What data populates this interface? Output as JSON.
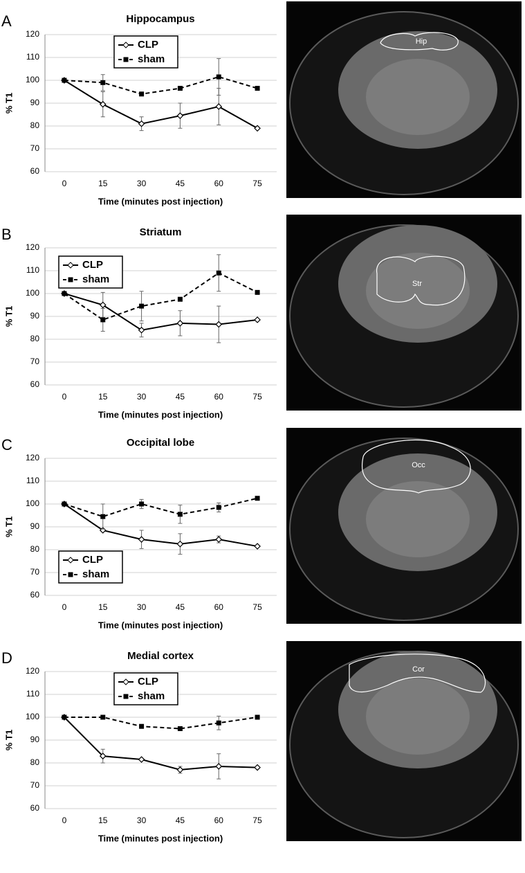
{
  "chart_data": [
    {
      "type": "line",
      "panel": "A",
      "title": "Hippocampus",
      "image_label": "Hip",
      "xlabel": "Time (minutes post injection)",
      "ylabel": "% T1",
      "categories": [
        "0",
        "15",
        "30",
        "45",
        "60",
        "75"
      ],
      "ylim": [
        60,
        120
      ],
      "yticks": [
        60,
        70,
        80,
        90,
        100,
        110,
        120
      ],
      "grid": true,
      "legend": "upper center",
      "series": [
        {
          "name": "CLP",
          "color": "#000000",
          "values": [
            100,
            89.5,
            81,
            84.5,
            88.5,
            79
          ],
          "errors": [
            null,
            5.5,
            3,
            5.5,
            8,
            null
          ]
        },
        {
          "name": "sham",
          "color": "#000000",
          "values": [
            100,
            99,
            94,
            96.5,
            101.5,
            96.5
          ],
          "errors": [
            null,
            3.5,
            null,
            null,
            8,
            null
          ]
        }
      ]
    },
    {
      "type": "line",
      "panel": "B",
      "title": "Striatum",
      "image_label": "Str",
      "xlabel": "Time (minutes post injection)",
      "ylabel": "% T1",
      "categories": [
        "0",
        "15",
        "30",
        "45",
        "60",
        "75"
      ],
      "ylim": [
        60,
        120
      ],
      "yticks": [
        60,
        70,
        80,
        90,
        100,
        110,
        120
      ],
      "grid": true,
      "legend": "upper left",
      "series": [
        {
          "name": "CLP",
          "color": "#000000",
          "values": [
            100,
            95,
            84,
            87,
            86.5,
            88.5
          ],
          "errors": [
            null,
            5.5,
            3,
            5.5,
            8,
            null
          ]
        },
        {
          "name": "sham",
          "color": "#000000",
          "values": [
            100,
            88.5,
            94.5,
            97.5,
            109,
            100.5
          ],
          "errors": [
            null,
            5,
            6.5,
            null,
            8,
            null
          ]
        }
      ]
    },
    {
      "type": "line",
      "panel": "C",
      "title": "Occipital lobe",
      "image_label": "Occ",
      "xlabel": "Time (minutes post injection)",
      "ylabel": "% T1",
      "categories": [
        "0",
        "15",
        "30",
        "45",
        "60",
        "75"
      ],
      "ylim": [
        60,
        120
      ],
      "yticks": [
        60,
        70,
        80,
        90,
        100,
        110,
        120
      ],
      "grid": true,
      "legend": "lower left",
      "series": [
        {
          "name": "CLP",
          "color": "#000000",
          "values": [
            100,
            88.5,
            84.5,
            82.5,
            84.5,
            81.5
          ],
          "errors": [
            null,
            null,
            4,
            4.5,
            1.5,
            null
          ]
        },
        {
          "name": "sham",
          "color": "#000000",
          "values": [
            100,
            94.5,
            100,
            95.5,
            98.5,
            102.5
          ],
          "errors": [
            null,
            5.5,
            2,
            4,
            2,
            null
          ]
        }
      ]
    },
    {
      "type": "line",
      "panel": "D",
      "title": "Medial cortex",
      "image_label": "Cor",
      "xlabel": "Time (minutes post injection)",
      "ylabel": "% T1",
      "categories": [
        "0",
        "15",
        "30",
        "45",
        "60",
        "75"
      ],
      "ylim": [
        60,
        120
      ],
      "yticks": [
        60,
        70,
        80,
        90,
        100,
        110,
        120
      ],
      "grid": true,
      "legend": "upper center",
      "series": [
        {
          "name": "CLP",
          "color": "#000000",
          "values": [
            100,
            83,
            81.5,
            77,
            78.5,
            78
          ],
          "errors": [
            null,
            3,
            null,
            1.5,
            5.5,
            null
          ]
        },
        {
          "name": "sham",
          "color": "#000000",
          "values": [
            100,
            100,
            96,
            95,
            97.5,
            100
          ],
          "errors": [
            null,
            null,
            null,
            null,
            3,
            null
          ]
        }
      ]
    }
  ]
}
